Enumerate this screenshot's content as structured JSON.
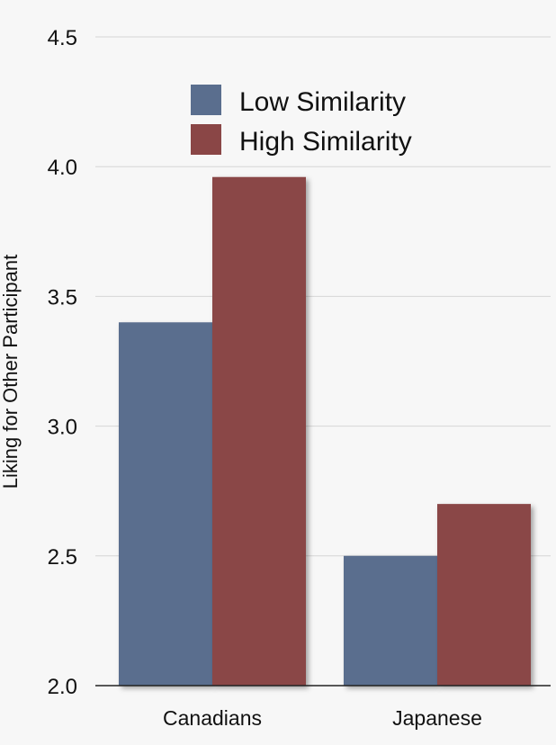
{
  "chart_data": {
    "type": "bar",
    "title": "",
    "xlabel": "",
    "ylabel": "Liking for Other Participant",
    "categories": [
      "Canadians",
      "Japanese"
    ],
    "series": [
      {
        "name": "Low Similarity",
        "values": [
          3.4,
          2.5
        ],
        "color": "#5a6e8e"
      },
      {
        "name": "High Similarity",
        "values": [
          3.96,
          2.7
        ],
        "color": "#8a4646"
      }
    ],
    "ylim": [
      2.0,
      4.5
    ],
    "yticks": [
      "2.0",
      "2.5",
      "3.0",
      "3.5",
      "4.0",
      "4.5"
    ],
    "grid": true,
    "legend_position": "top-center"
  }
}
